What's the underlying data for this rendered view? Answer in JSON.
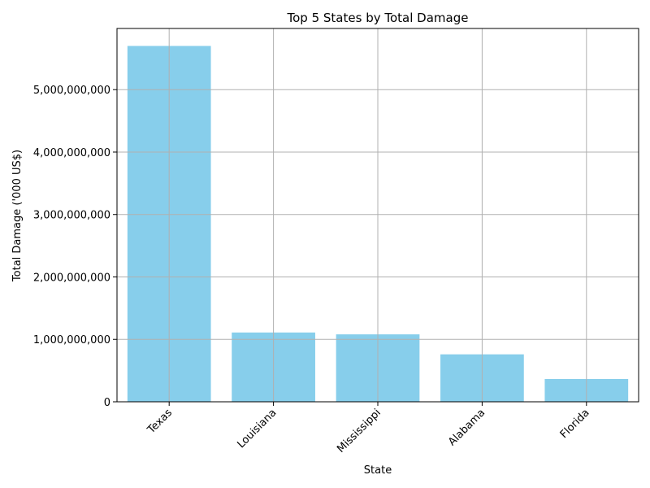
{
  "chart_data": {
    "type": "bar",
    "title": "Top 5 States by Total Damage",
    "xlabel": "State",
    "ylabel": "Total Damage ('000 US$)",
    "categories": [
      "Texas",
      "Louisiana",
      "Mississippi",
      "Alabama",
      "Florida"
    ],
    "values": [
      5700000000,
      1110000000,
      1080000000,
      760000000,
      365000000
    ],
    "ylim": [
      0,
      6000000000
    ],
    "yticks": [
      0,
      1000000000,
      2000000000,
      3000000000,
      4000000000,
      5000000000
    ],
    "ytick_labels": [
      "0",
      "1,000,000,000",
      "2,000,000,000",
      "3,000,000,000",
      "4,000,000,000",
      "5,000,000,000"
    ],
    "grid": true,
    "bar_color": "#87ceeb"
  }
}
